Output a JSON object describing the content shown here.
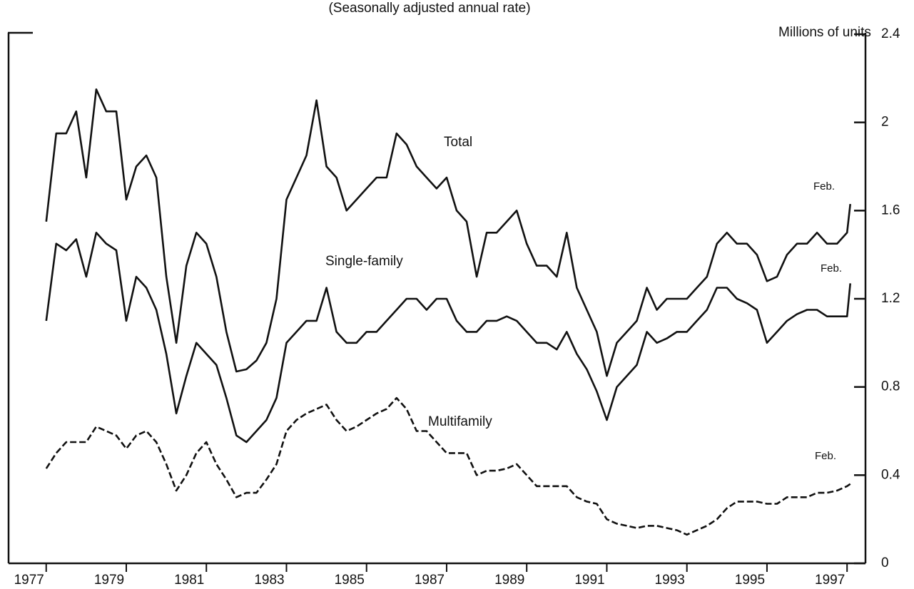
{
  "chart_data": {
    "type": "line",
    "title": "(Seasonally adjusted annual rate)",
    "y_axis_label": "Millions of units",
    "annotations": [
      "Total",
      "Single-family",
      "Multifamily",
      "Feb.",
      "Feb.",
      "Feb."
    ],
    "x": [
      1977,
      1977.25,
      1977.5,
      1977.75,
      1978,
      1978.25,
      1978.5,
      1978.75,
      1979,
      1979.25,
      1979.5,
      1979.75,
      1980,
      1980.25,
      1980.5,
      1980.75,
      1981,
      1981.25,
      1981.5,
      1981.75,
      1982,
      1982.25,
      1982.5,
      1982.75,
      1983,
      1983.25,
      1983.5,
      1983.75,
      1984,
      1984.25,
      1984.5,
      1984.75,
      1985,
      1985.25,
      1985.5,
      1985.75,
      1986,
      1986.25,
      1986.5,
      1986.75,
      1987,
      1987.25,
      1987.5,
      1987.75,
      1988,
      1988.25,
      1988.5,
      1988.75,
      1989,
      1989.25,
      1989.5,
      1989.75,
      1990,
      1990.25,
      1990.5,
      1990.75,
      1991,
      1991.25,
      1991.5,
      1991.75,
      1992,
      1992.25,
      1992.5,
      1992.75,
      1993,
      1993.25,
      1993.5,
      1993.75,
      1994,
      1994.25,
      1994.5,
      1994.75,
      1995,
      1995.25,
      1995.5,
      1995.75,
      1996,
      1996.25,
      1996.5,
      1996.75,
      1997,
      1997.08
    ],
    "series": [
      {
        "name": "Total",
        "color": "#111111",
        "dashed": false,
        "values": [
          1.55,
          1.95,
          1.95,
          2.05,
          1.75,
          2.15,
          2.05,
          2.05,
          1.65,
          1.8,
          1.85,
          1.75,
          1.3,
          1.0,
          1.35,
          1.5,
          1.45,
          1.3,
          1.05,
          0.87,
          0.88,
          0.92,
          1.0,
          1.2,
          1.65,
          1.75,
          1.85,
          2.1,
          1.8,
          1.75,
          1.6,
          1.65,
          1.7,
          1.75,
          1.75,
          1.95,
          1.9,
          1.8,
          1.75,
          1.7,
          1.75,
          1.6,
          1.55,
          1.3,
          1.5,
          1.5,
          1.55,
          1.6,
          1.45,
          1.35,
          1.35,
          1.3,
          1.5,
          1.25,
          1.15,
          1.05,
          0.85,
          1.0,
          1.05,
          1.1,
          1.25,
          1.15,
          1.2,
          1.2,
          1.2,
          1.25,
          1.3,
          1.45,
          1.5,
          1.45,
          1.45,
          1.4,
          1.28,
          1.3,
          1.4,
          1.45,
          1.45,
          1.5,
          1.45,
          1.45,
          1.5,
          1.63
        ]
      },
      {
        "name": "Single-family",
        "color": "#111111",
        "dashed": false,
        "values": [
          1.1,
          1.45,
          1.42,
          1.47,
          1.3,
          1.5,
          1.45,
          1.42,
          1.1,
          1.3,
          1.25,
          1.15,
          0.95,
          0.68,
          0.85,
          1.0,
          0.95,
          0.9,
          0.75,
          0.58,
          0.55,
          0.6,
          0.65,
          0.75,
          1.0,
          1.05,
          1.1,
          1.1,
          1.25,
          1.05,
          1.0,
          1.0,
          1.05,
          1.05,
          1.1,
          1.15,
          1.2,
          1.2,
          1.15,
          1.2,
          1.2,
          1.1,
          1.05,
          1.05,
          1.1,
          1.1,
          1.12,
          1.1,
          1.05,
          1.0,
          1.0,
          0.97,
          1.05,
          0.95,
          0.88,
          0.78,
          0.65,
          0.8,
          0.85,
          0.9,
          1.05,
          1.0,
          1.02,
          1.05,
          1.05,
          1.1,
          1.15,
          1.25,
          1.25,
          1.2,
          1.18,
          1.15,
          1.0,
          1.05,
          1.1,
          1.13,
          1.15,
          1.15,
          1.12,
          1.12,
          1.12,
          1.27
        ]
      },
      {
        "name": "Multifamily",
        "color": "#111111",
        "dashed": true,
        "values": [
          0.43,
          0.5,
          0.55,
          0.55,
          0.55,
          0.62,
          0.6,
          0.58,
          0.52,
          0.58,
          0.6,
          0.55,
          0.45,
          0.33,
          0.4,
          0.5,
          0.55,
          0.45,
          0.38,
          0.3,
          0.32,
          0.32,
          0.38,
          0.45,
          0.6,
          0.65,
          0.68,
          0.7,
          0.72,
          0.65,
          0.6,
          0.62,
          0.65,
          0.68,
          0.7,
          0.75,
          0.7,
          0.6,
          0.6,
          0.55,
          0.5,
          0.5,
          0.5,
          0.4,
          0.42,
          0.42,
          0.43,
          0.45,
          0.4,
          0.35,
          0.35,
          0.35,
          0.35,
          0.3,
          0.28,
          0.27,
          0.2,
          0.18,
          0.17,
          0.16,
          0.17,
          0.17,
          0.16,
          0.15,
          0.13,
          0.15,
          0.17,
          0.2,
          0.25,
          0.28,
          0.28,
          0.28,
          0.27,
          0.27,
          0.3,
          0.3,
          0.3,
          0.32,
          0.32,
          0.33,
          0.35,
          0.36
        ]
      }
    ],
    "xlim": [
      1976.06,
      1997.46
    ],
    "xticks": [
      1977,
      1979,
      1981,
      1983,
      1985,
      1987,
      1989,
      1991,
      1993,
      1995,
      1997
    ],
    "ylim": [
      0,
      2.4
    ],
    "yticks": [
      0,
      0.4,
      0.8,
      1.2,
      1.6,
      2,
      2.4
    ]
  }
}
